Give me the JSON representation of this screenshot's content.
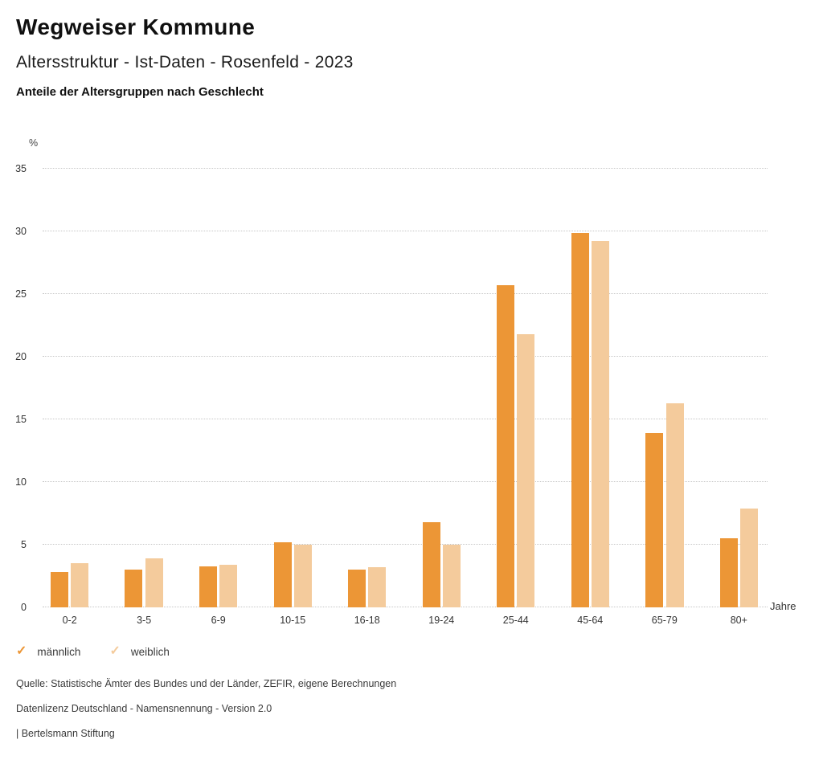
{
  "header": {
    "title": "Wegweiser Kommune",
    "subtitle": "Altersstruktur - Ist-Daten - Rosenfeld - 2023",
    "chart_heading": "Anteile der Altersgruppen nach Geschlecht"
  },
  "chart_data": {
    "type": "bar",
    "title": "Anteile der Altersgruppen nach Geschlecht",
    "categories": [
      "0-2",
      "3-5",
      "6-9",
      "10-15",
      "16-18",
      "19-24",
      "25-44",
      "45-64",
      "65-79",
      "80+"
    ],
    "series": [
      {
        "name": "männlich",
        "color": "#ec9636",
        "values": [
          2.8,
          3.0,
          3.3,
          5.2,
          3.0,
          6.8,
          25.7,
          29.9,
          13.9,
          5.5
        ]
      },
      {
        "name": "weiblich",
        "color": "#f4cb9c",
        "values": [
          3.5,
          3.9,
          3.4,
          5.0,
          3.2,
          5.0,
          21.8,
          29.2,
          16.3,
          7.9
        ]
      }
    ],
    "ylabel": "%",
    "xlabel": "Jahre",
    "ylim": [
      0,
      35
    ],
    "ytick_step": 5,
    "legend_position": "bottom-left",
    "grid": "horizontal-dotted"
  },
  "legend": {
    "check_glyph": "✓",
    "items": [
      {
        "label": "männlich",
        "color": "#ec9636"
      },
      {
        "label": "weiblich",
        "color": "#f4cb9c"
      }
    ]
  },
  "footer": {
    "lines": [
      "Quelle: Statistische Ämter des Bundes und der Länder, ZEFIR, eigene Berechnungen",
      "Datenlizenz Deutschland - Namensnennung - Version 2.0",
      "| Bertelsmann Stiftung"
    ]
  }
}
